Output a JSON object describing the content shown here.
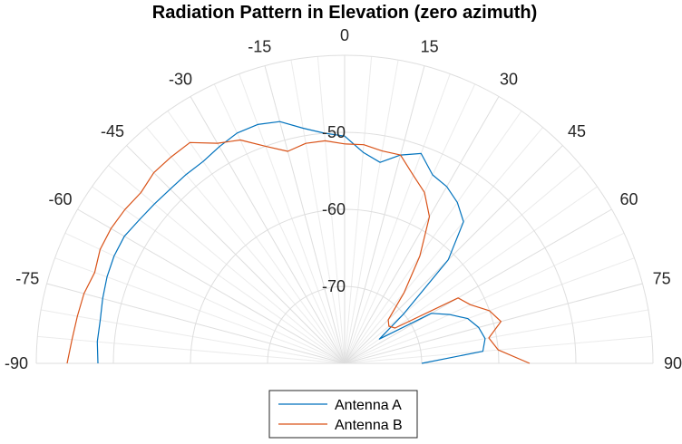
{
  "chart_data": {
    "type": "polar",
    "title": "Radiation Pattern in Elevation (zero azimuth)",
    "theta_range": [
      -90,
      90
    ],
    "theta_ticks": [
      "-90",
      "-75",
      "-60",
      "-45",
      "-30",
      "-15",
      "0",
      "15",
      "30",
      "45",
      "60",
      "75",
      "90"
    ],
    "theta_tick_values": [
      -90,
      -75,
      -60,
      -45,
      -30,
      -15,
      0,
      15,
      30,
      45,
      60,
      75,
      90
    ],
    "r_range": [
      -80,
      -40
    ],
    "r_ticks": [
      "-70",
      "-60",
      "-50"
    ],
    "r_tick_values": [
      -70,
      -60,
      -50
    ],
    "grid": true,
    "legend_position": "bottom",
    "series": [
      {
        "name": "Antenna A",
        "color": "#0072BD",
        "theta": [
          -90,
          -85,
          -80,
          -75,
          -70,
          -65,
          -60,
          -55,
          -50,
          -45,
          -40,
          -35,
          -30,
          -25,
          -20,
          -15,
          -10,
          -5,
          0,
          5,
          10,
          15,
          20,
          25,
          30,
          35,
          40,
          45,
          50,
          55,
          60,
          65,
          70,
          75,
          80,
          85,
          90
        ],
        "r": [
          -48.0,
          -47.8,
          -47.8,
          -47.5,
          -47.2,
          -47.0,
          -47.0,
          -47.5,
          -47.8,
          -48.0,
          -48.0,
          -48.0,
          -47.5,
          -47.0,
          -47.0,
          -47.5,
          -49.0,
          -50.0,
          -50.5,
          -52.5,
          -53.5,
          -52.0,
          -51.0,
          -53.0,
          -53.5,
          -54.5,
          -56.0,
          -61.0,
          -70.0,
          -74.5,
          -67.0,
          -65.0,
          -63.0,
          -62.0,
          -61.5,
          -62.0,
          -70.0
        ]
      },
      {
        "name": "Antenna B",
        "color": "#D95319",
        "theta": [
          -90,
          -85,
          -80,
          -75,
          -70,
          -65,
          -60,
          -55,
          -50,
          -45,
          -40,
          -35,
          -30,
          -25,
          -20,
          -15,
          -10,
          -5,
          0,
          5,
          10,
          15,
          20,
          25,
          30,
          35,
          40,
          45,
          50,
          55,
          60,
          65,
          70,
          75,
          80,
          85,
          90
        ],
        "r": [
          -44.0,
          -44.5,
          -44.8,
          -45.0,
          -45.5,
          -45.0,
          -45.0,
          -45.2,
          -45.5,
          -45.0,
          -45.0,
          -45.0,
          -47.0,
          -48.0,
          -50.0,
          -51.5,
          -51.0,
          -51.0,
          -51.5,
          -51.5,
          -52.0,
          -52.0,
          -54.0,
          -55.5,
          -58.0,
          -63.0,
          -68.0,
          -72.0,
          -72.5,
          -72.0,
          -63.0,
          -62.0,
          -60.0,
          -59.0,
          -61.0,
          -60.0,
          -56.0
        ]
      }
    ]
  }
}
